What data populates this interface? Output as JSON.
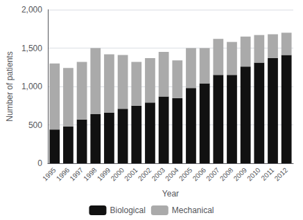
{
  "chart_data": {
    "type": "bar",
    "xlabel": "Year",
    "ylabel": "Number of patients",
    "categories": [
      1995,
      1996,
      1997,
      1998,
      1999,
      2000,
      2001,
      2002,
      2003,
      2004,
      2005,
      2006,
      2007,
      2008,
      2009,
      2010,
      2011,
      2012
    ],
    "series": [
      {
        "name": "Biological",
        "color": "#111111",
        "values": [
          440,
          480,
          570,
          640,
          660,
          710,
          750,
          790,
          870,
          850,
          980,
          1040,
          1150,
          1150,
          1260,
          1310,
          1370,
          1410
        ]
      },
      {
        "name": "Mechanical",
        "color": "#aaaaaa",
        "values": [
          860,
          760,
          750,
          860,
          760,
          700,
          570,
          580,
          580,
          490,
          520,
          460,
          470,
          430,
          390,
          360,
          310,
          290
        ]
      }
    ],
    "ylim": [
      0,
      2000
    ],
    "yticks": [
      0,
      500,
      {
        "value": 1000,
        "label": "1,000"
      },
      {
        "value": 1500,
        "label": "1,500"
      },
      {
        "value": 2000,
        "label": "2,000"
      }
    ],
    "grid": true,
    "stacked": true,
    "legend": "bottom"
  }
}
